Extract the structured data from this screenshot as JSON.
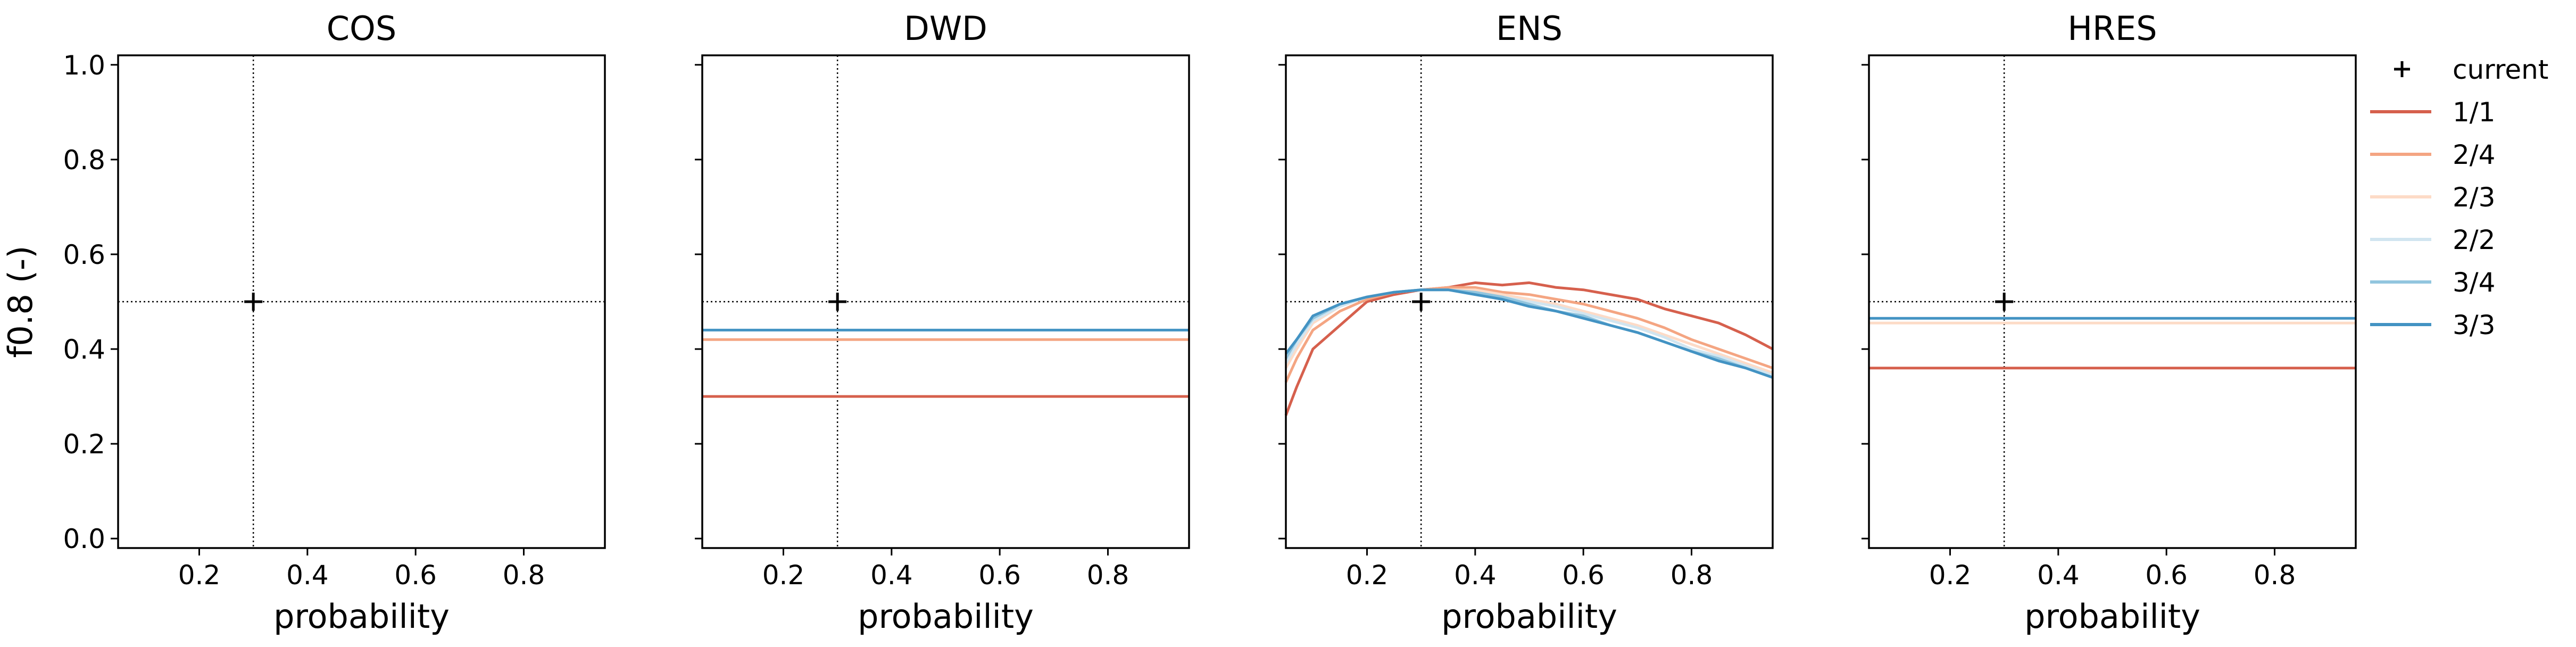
{
  "chart_data": {
    "type": "line",
    "shared_y": true,
    "ylabel": "f0.8 (-)",
    "ylim": [
      -0.02,
      1.02
    ],
    "yticks": [
      0.0,
      0.2,
      0.4,
      0.6,
      0.8,
      1.0
    ],
    "ytick_labels": [
      "0.0",
      "0.2",
      "0.4",
      "0.6",
      "0.8",
      "1.0"
    ],
    "xlim": [
      0.05,
      0.95
    ],
    "xticks": [
      0.2,
      0.4,
      0.6,
      0.8
    ],
    "xtick_labels": [
      "0.2",
      "0.4",
      "0.6",
      "0.8"
    ],
    "reference": {
      "x": 0.3,
      "y": 0.5
    },
    "legend": {
      "location": "outside right",
      "marker_label": "current",
      "entries": [
        {
          "name": "1/1",
          "color": "#d6604d"
        },
        {
          "name": "2/4",
          "color": "#f4a582"
        },
        {
          "name": "2/3",
          "color": "#fddbc7"
        },
        {
          "name": "2/2",
          "color": "#d1e5f0"
        },
        {
          "name": "3/4",
          "color": "#92c5de"
        },
        {
          "name": "3/3",
          "color": "#4393c3"
        }
      ]
    },
    "panels": [
      {
        "title": "COS",
        "xlabel": "probability",
        "series": []
      },
      {
        "title": "DWD",
        "xlabel": "probability",
        "series": [
          {
            "name": "1/1",
            "x": [
              0.05,
              0.95
            ],
            "y": [
              0.3,
              0.3
            ]
          },
          {
            "name": "2/4",
            "x": [
              0.05,
              0.95
            ],
            "y": [
              0.42,
              0.42
            ]
          },
          {
            "name": "3/3",
            "x": [
              0.05,
              0.95
            ],
            "y": [
              0.44,
              0.44
            ]
          }
        ]
      },
      {
        "title": "ENS",
        "xlabel": "probability",
        "series": [
          {
            "name": "1/1",
            "x": [
              0.05,
              0.07,
              0.1,
              0.15,
              0.2,
              0.25,
              0.3,
              0.35,
              0.4,
              0.45,
              0.5,
              0.55,
              0.6,
              0.65,
              0.7,
              0.75,
              0.8,
              0.85,
              0.9,
              0.95
            ],
            "y": [
              0.26,
              0.32,
              0.4,
              0.45,
              0.5,
              0.515,
              0.525,
              0.53,
              0.54,
              0.535,
              0.54,
              0.53,
              0.525,
              0.515,
              0.505,
              0.485,
              0.47,
              0.455,
              0.43,
              0.4
            ]
          },
          {
            "name": "2/4",
            "x": [
              0.05,
              0.07,
              0.1,
              0.15,
              0.2,
              0.25,
              0.3,
              0.35,
              0.4,
              0.45,
              0.5,
              0.55,
              0.6,
              0.65,
              0.7,
              0.75,
              0.8,
              0.85,
              0.9,
              0.95
            ],
            "y": [
              0.33,
              0.38,
              0.44,
              0.48,
              0.505,
              0.52,
              0.525,
              0.53,
              0.53,
              0.52,
              0.515,
              0.505,
              0.495,
              0.48,
              0.465,
              0.445,
              0.42,
              0.4,
              0.38,
              0.36
            ]
          },
          {
            "name": "2/3",
            "x": [
              0.05,
              0.07,
              0.1,
              0.15,
              0.2,
              0.25,
              0.3,
              0.35,
              0.4,
              0.45,
              0.5,
              0.55,
              0.6,
              0.65,
              0.7,
              0.75,
              0.8,
              0.85,
              0.9,
              0.95
            ],
            "y": [
              0.36,
              0.4,
              0.455,
              0.49,
              0.51,
              0.52,
              0.525,
              0.525,
              0.525,
              0.515,
              0.505,
              0.495,
              0.48,
              0.465,
              0.45,
              0.43,
              0.41,
              0.39,
              0.37,
              0.35
            ]
          },
          {
            "name": "2/2",
            "x": [
              0.05,
              0.07,
              0.1,
              0.15,
              0.2,
              0.25,
              0.3,
              0.35,
              0.4,
              0.45,
              0.5,
              0.55,
              0.6,
              0.65,
              0.7,
              0.75,
              0.8,
              0.85,
              0.9,
              0.95
            ],
            "y": [
              0.37,
              0.41,
              0.46,
              0.49,
              0.51,
              0.52,
              0.525,
              0.525,
              0.52,
              0.51,
              0.5,
              0.49,
              0.475,
              0.46,
              0.445,
              0.425,
              0.4,
              0.385,
              0.365,
              0.345
            ]
          },
          {
            "name": "3/4",
            "x": [
              0.05,
              0.07,
              0.1,
              0.15,
              0.2,
              0.25,
              0.3,
              0.35,
              0.4,
              0.45,
              0.5,
              0.55,
              0.6,
              0.65,
              0.7,
              0.75,
              0.8,
              0.85,
              0.9,
              0.95
            ],
            "y": [
              0.38,
              0.42,
              0.465,
              0.495,
              0.51,
              0.52,
              0.525,
              0.525,
              0.52,
              0.51,
              0.495,
              0.48,
              0.47,
              0.45,
              0.435,
              0.415,
              0.395,
              0.38,
              0.36,
              0.34
            ]
          },
          {
            "name": "3/3",
            "x": [
              0.05,
              0.07,
              0.1,
              0.15,
              0.2,
              0.25,
              0.3,
              0.35,
              0.4,
              0.45,
              0.5,
              0.55,
              0.6,
              0.65,
              0.7,
              0.75,
              0.8,
              0.85,
              0.9,
              0.95
            ],
            "y": [
              0.39,
              0.42,
              0.47,
              0.495,
              0.51,
              0.52,
              0.525,
              0.525,
              0.515,
              0.505,
              0.49,
              0.48,
              0.465,
              0.45,
              0.435,
              0.415,
              0.395,
              0.375,
              0.36,
              0.34
            ]
          }
        ]
      },
      {
        "title": "HRES",
        "xlabel": "probability",
        "series": [
          {
            "name": "1/1",
            "x": [
              0.05,
              0.95
            ],
            "y": [
              0.36,
              0.36
            ]
          },
          {
            "name": "2/3",
            "x": [
              0.05,
              0.95
            ],
            "y": [
              0.455,
              0.455
            ]
          },
          {
            "name": "3/3",
            "x": [
              0.05,
              0.95
            ],
            "y": [
              0.465,
              0.465
            ]
          }
        ]
      }
    ]
  }
}
